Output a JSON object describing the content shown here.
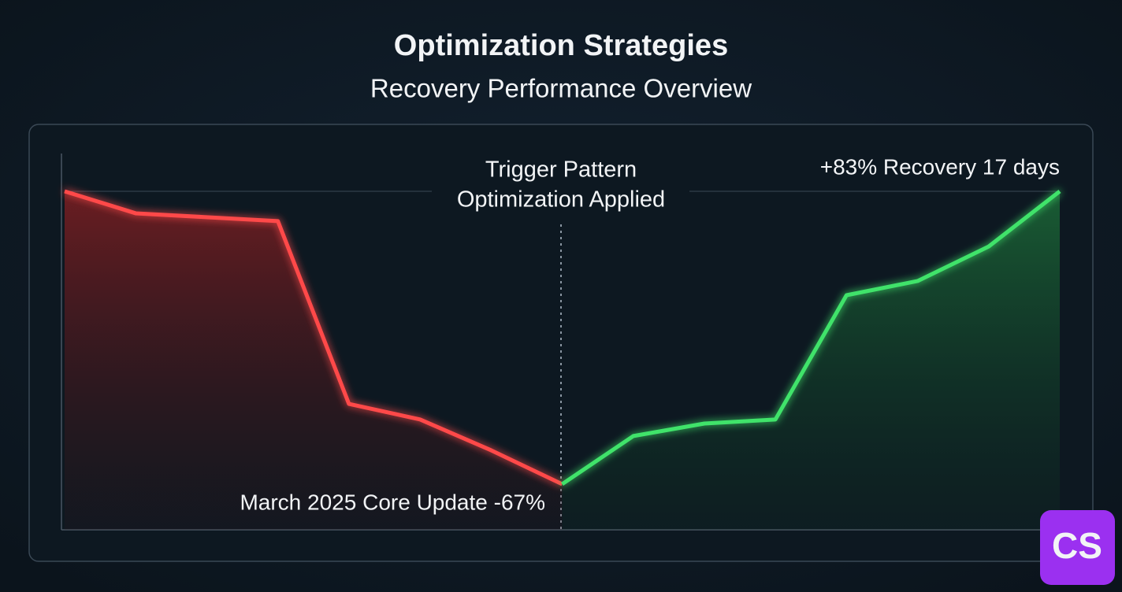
{
  "chart_data": {
    "type": "line",
    "title": "Optimization Strategies",
    "subtitle": "Recovery Performance Overview",
    "xlim": [
      0,
      14
    ],
    "ylim": [
      0,
      100
    ],
    "series": [
      {
        "color": "#ff4a4a",
        "x": [
          0,
          1,
          3,
          4,
          5,
          6,
          7
        ],
        "values": [
          100,
          93.5,
          91.2,
          37.2,
          32.6,
          23.5,
          13.5
        ]
      },
      {
        "color": "#3fe36b",
        "x": [
          7,
          8,
          9,
          10,
          11,
          12,
          13,
          14
        ],
        "values": [
          13.5,
          27.7,
          31.4,
          32.6,
          69.3,
          73.5,
          83.7,
          100
        ]
      }
    ],
    "annotations": {
      "trigger": [
        "Trigger Pattern",
        "Optimization Applied"
      ],
      "recovery": "+83% Recovery 17 days",
      "drop": "March 2025 Core Update -67%"
    },
    "badge": "CS"
  }
}
